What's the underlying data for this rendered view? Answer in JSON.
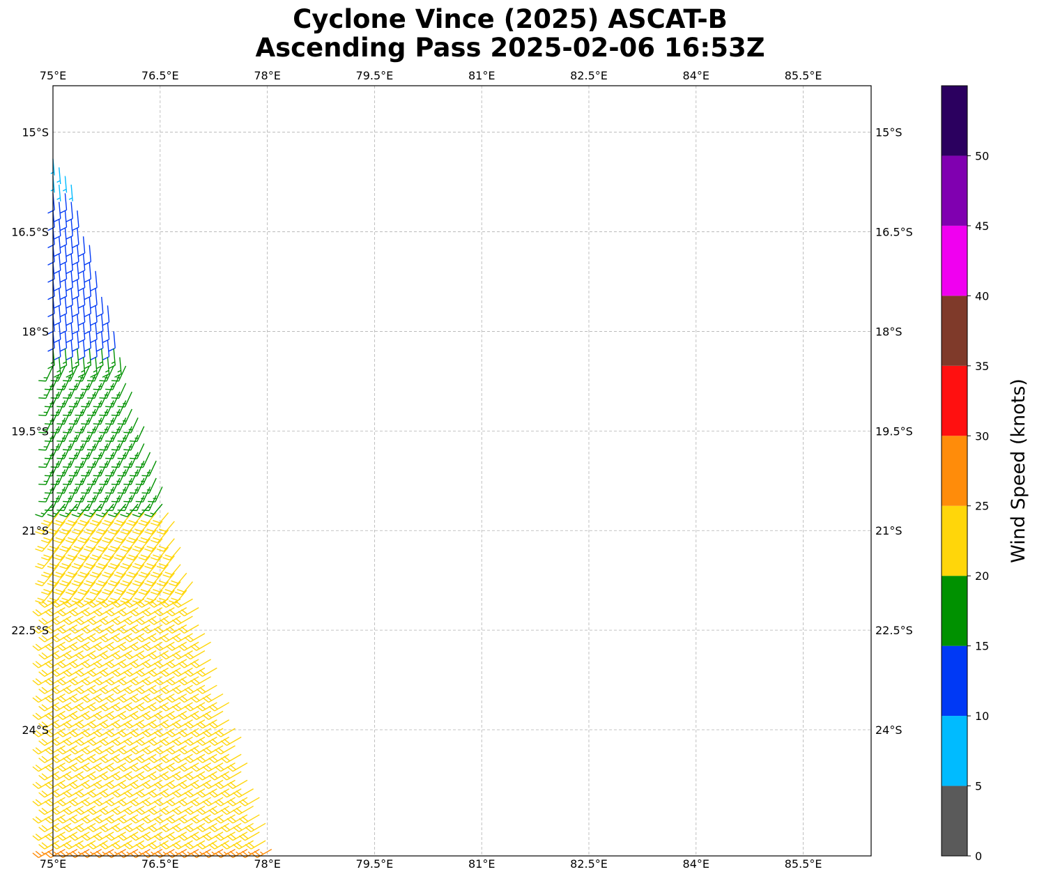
{
  "title": {
    "line1": "Cyclone Vince (2025) ASCAT-B",
    "line2": "Ascending Pass 2025-02-06 16:53Z"
  },
  "map": {
    "lon_range": [
      75.0,
      86.45
    ],
    "lat_range": [
      -25.9,
      -14.3
    ],
    "lon_ticks": [
      {
        "value": 75.0,
        "label": "75°E"
      },
      {
        "value": 76.5,
        "label": "76.5°E"
      },
      {
        "value": 78.0,
        "label": "78°E"
      },
      {
        "value": 79.5,
        "label": "79.5°E"
      },
      {
        "value": 81.0,
        "label": "81°E"
      },
      {
        "value": 82.5,
        "label": "82.5°E"
      },
      {
        "value": 84.0,
        "label": "84°E"
      },
      {
        "value": 85.5,
        "label": "85.5°E"
      }
    ],
    "lat_ticks": [
      {
        "value": -15.0,
        "label": "15°S"
      },
      {
        "value": -16.5,
        "label": "16.5°S"
      },
      {
        "value": -18.0,
        "label": "18°S"
      },
      {
        "value": -19.5,
        "label": "19.5°S"
      },
      {
        "value": -21.0,
        "label": "21°S"
      },
      {
        "value": -22.5,
        "label": "22.5°S"
      },
      {
        "value": -24.0,
        "label": "24°S"
      }
    ],
    "grid": true,
    "gridline_color": "#b0b0b0"
  },
  "colorbar": {
    "label": "Wind Speed (knots)",
    "range": [
      0,
      55
    ],
    "bins": [
      {
        "from": 0,
        "to": 5,
        "color": "#5a5a5a"
      },
      {
        "from": 5,
        "to": 10,
        "color": "#00bbff"
      },
      {
        "from": 10,
        "to": 15,
        "color": "#0039f5"
      },
      {
        "from": 15,
        "to": 20,
        "color": "#009100"
      },
      {
        "from": 20,
        "to": 25,
        "color": "#ffd60a"
      },
      {
        "from": 25,
        "to": 30,
        "color": "#ff8c0a"
      },
      {
        "from": 30,
        "to": 35,
        "color": "#ff1010"
      },
      {
        "from": 35,
        "to": 40,
        "color": "#7f3a2a"
      },
      {
        "from": 40,
        "to": 45,
        "color": "#f000f0"
      },
      {
        "from": 45,
        "to": 50,
        "color": "#8000b0"
      },
      {
        "from": 50,
        "to": 55,
        "color": "#2b005f"
      }
    ],
    "ticks": [
      0,
      5,
      10,
      15,
      20,
      25,
      30,
      35,
      40,
      45,
      50
    ]
  },
  "wind_field": {
    "swath_lat_range": [
      -15.4,
      -25.9
    ],
    "swath_west_lon": 75.0,
    "swath_east_lon_north": 75.15,
    "swath_east_lon_south": 78.15,
    "speed_zones": [
      {
        "lat_from": -15.4,
        "lat_to": -15.8,
        "speed_kt": 8
      },
      {
        "lat_from": -15.8,
        "lat_to": -18.2,
        "speed_kt": 12
      },
      {
        "lat_from": -18.2,
        "lat_to": -20.6,
        "speed_kt": 17
      },
      {
        "lat_from": -20.6,
        "lat_to": -25.7,
        "speed_kt": 22
      },
      {
        "lat_from": -25.7,
        "lat_to": -25.9,
        "speed_kt": 27
      }
    ],
    "direction_zones": [
      {
        "lat_from": -15.4,
        "lat_to": -18.5,
        "from_deg": 175
      },
      {
        "lat_from": -18.5,
        "lat_to": -20.5,
        "from_deg": 205
      },
      {
        "lat_from": -20.5,
        "lat_to": -22.0,
        "from_deg": 220
      },
      {
        "lat_from": -22.0,
        "lat_to": -25.9,
        "from_deg": 240
      }
    ]
  }
}
